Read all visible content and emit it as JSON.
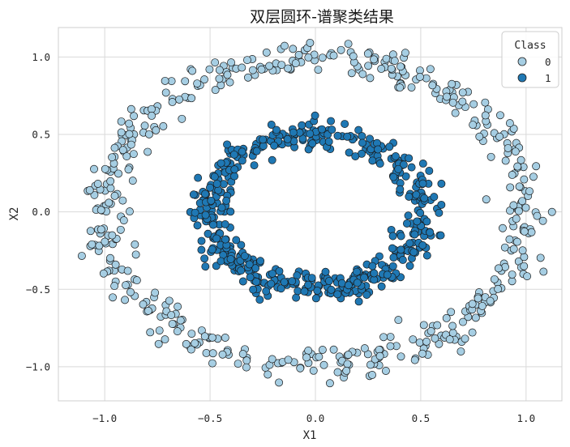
{
  "chart_data": {
    "type": "scatter",
    "title": "双层圆环-谱聚类结果",
    "xlabel": "X1",
    "ylabel": "X2",
    "xlim": [
      -1.22,
      1.17
    ],
    "ylim": [
      -1.22,
      1.19
    ],
    "x_ticks": [
      -1.0,
      -0.5,
      0.0,
      0.5,
      1.0
    ],
    "x_tick_labels": [
      "−1.0",
      "−0.5",
      "0.0",
      "0.5",
      "1.0"
    ],
    "y_ticks": [
      -1.0,
      -0.5,
      0.0,
      0.5,
      1.0
    ],
    "y_tick_labels": [
      "−1.0",
      "−0.5",
      "0.0",
      "0.5",
      "1.0"
    ],
    "grid": true,
    "legend": {
      "title": "Class",
      "placement": "top-right",
      "entries": [
        "0",
        "1"
      ]
    },
    "series": [
      {
        "name": "0",
        "color": "#a6cee3",
        "shape": "ring",
        "n_points": 500,
        "center": [
          0.0,
          0.0
        ],
        "radius_x": 1.0,
        "radius_y": 1.0,
        "noise": 0.05
      },
      {
        "name": "1",
        "color": "#1f78b4",
        "shape": "ring",
        "n_points": 500,
        "center": [
          0.0,
          0.0
        ],
        "radius_x": 0.5,
        "radius_y": 0.5,
        "noise": 0.05
      }
    ]
  }
}
